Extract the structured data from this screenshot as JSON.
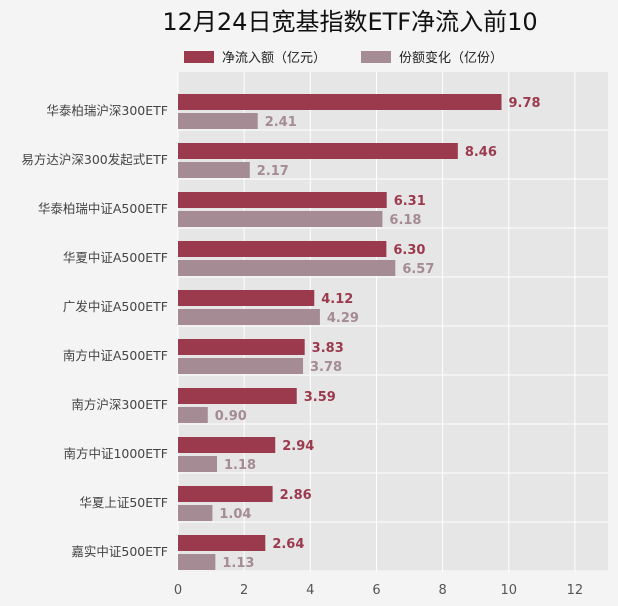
{
  "chart_data": {
    "type": "bar",
    "orientation": "horizontal",
    "title": "12月24日宽基指数ETF净流入前10",
    "categories": [
      "华泰柏瑞沪深300ETF",
      "易方达沪深300发起式ETF",
      "华泰柏瑞中证A500ETF",
      "华夏中证A500ETF",
      "广发中证A500ETF",
      "南方中证A500ETF",
      "南方沪深300ETF",
      "南方中证1000ETF",
      "华夏上证50ETF",
      "嘉实中证500ETF"
    ],
    "series": [
      {
        "name": "净流入额（亿元）",
        "color": "#9b3a4c",
        "values": [
          9.78,
          8.46,
          6.31,
          6.3,
          4.12,
          3.83,
          3.59,
          2.94,
          2.86,
          2.64
        ],
        "labels": [
          "9.78",
          "8.46",
          "6.31",
          "6.30",
          "4.12",
          "3.83",
          "3.59",
          "2.94",
          "2.86",
          "2.64"
        ]
      },
      {
        "name": "份额变化（亿份）",
        "color": "#a48b94",
        "values": [
          2.41,
          2.17,
          6.18,
          6.57,
          4.29,
          3.78,
          0.9,
          1.18,
          1.04,
          1.13
        ],
        "labels": [
          "2.41",
          "2.17",
          "6.18",
          "6.57",
          "4.29",
          "3.78",
          "0.90",
          "1.18",
          "1.04",
          "1.13"
        ]
      }
    ],
    "xlim": [
      0,
      13
    ],
    "xticks": [
      0,
      2,
      4,
      6,
      8,
      10,
      12
    ],
    "xtick_labels": [
      "0",
      "2",
      "4",
      "6",
      "8",
      "10",
      "12"
    ],
    "grid": true,
    "legend_position": "top",
    "plot_background": "#e6e6e6",
    "grid_color": "#ffffff"
  }
}
